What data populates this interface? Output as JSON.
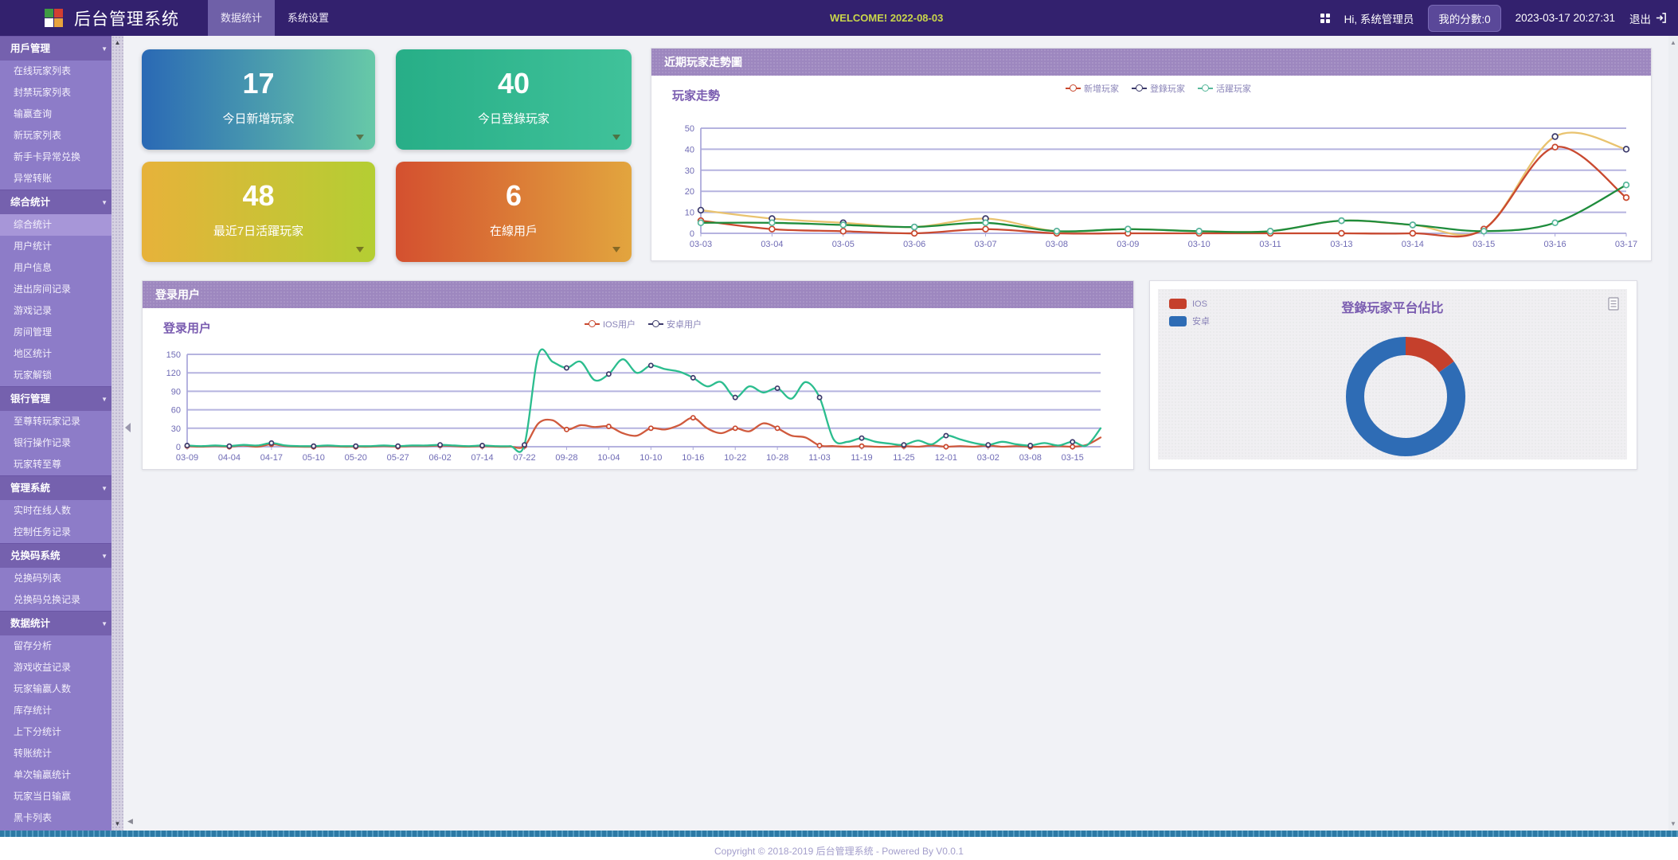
{
  "topbar": {
    "brand": "后台管理系统",
    "tabs": [
      {
        "label": "数据统计",
        "active": true
      },
      {
        "label": "系统设置",
        "active": false
      }
    ],
    "welcome": "WELCOME! 2022-08-03",
    "greeting": "Hi, 系统管理员",
    "score": "我的分數:0",
    "datetime": "2023-03-17 20:27:31",
    "logout": "退出"
  },
  "sidebar": {
    "groups": [
      {
        "label": "用戶管理",
        "items": [
          "在线玩家列表",
          "封禁玩家列表",
          "输赢查询",
          "新玩家列表",
          "新手卡异常兑换",
          "异常转账"
        ],
        "active_item": ""
      },
      {
        "label": "综合统计",
        "items": [
          "综合统计",
          "用户统计",
          "用户信息",
          "进出房间记录",
          "游戏记录",
          "房间管理",
          "地区统计",
          "玩家解锁"
        ],
        "active_item": "综合统计"
      },
      {
        "label": "银行管理",
        "items": [
          "至尊转玩家记录",
          "银行操作记录",
          "玩家转至尊"
        ],
        "active_item": ""
      },
      {
        "label": "管理系統",
        "items": [
          "实时在线人数",
          "控制任务记录"
        ],
        "active_item": ""
      },
      {
        "label": "兑换码系统",
        "items": [
          "兑换码列表",
          "兑换码兑换记录"
        ],
        "active_item": ""
      },
      {
        "label": "数据统计",
        "items": [
          "留存分析",
          "游戏收益记录",
          "玩家输赢人数",
          "库存统计",
          "上下分统计",
          "转账统计",
          "单次输赢统计",
          "玩家当日输赢",
          "黑卡列表"
        ],
        "active_item": ""
      }
    ]
  },
  "cards": [
    {
      "value": "17",
      "label": "今日新增玩家",
      "from": "#2a69b5",
      "to": "#67c9a8"
    },
    {
      "value": "40",
      "label": "今日登錄玩家",
      "from": "#27ae87",
      "to": "#40c29a"
    },
    {
      "value": "48",
      "label": "最近7日活躍玩家",
      "from": "#e7b23a",
      "to": "#b4ce33"
    },
    {
      "value": "6",
      "label": "在線用戶",
      "from": "#d4502f",
      "to": "#e2a53e"
    }
  ],
  "chart_data": [
    {
      "type": "line",
      "panel_title": "近期玩家走勢圖",
      "title": "玩家走勢",
      "categories": [
        "03-03",
        "03-04",
        "03-05",
        "03-06",
        "03-07",
        "03-08",
        "03-09",
        "03-10",
        "03-11",
        "03-13",
        "03-14",
        "03-15",
        "03-16",
        "03-17"
      ],
      "label_every": 1,
      "marker_every": 1,
      "ylim": [
        0,
        50
      ],
      "yticks": [
        0,
        10,
        20,
        30,
        40,
        50
      ],
      "grid": true,
      "legend_position": "top-right",
      "draw_order": [
        1,
        0,
        2
      ],
      "series": [
        {
          "name": "新增玩家",
          "line_color": "#c9492f",
          "marker_color": "#c9492f",
          "values": [
            6,
            2,
            1,
            0,
            2,
            0,
            0,
            0,
            0,
            0,
            0,
            2,
            41,
            17
          ]
        },
        {
          "name": "登錄玩家",
          "line_color": "#e9c36f",
          "marker_color": "#3c3a6b",
          "values": [
            11,
            7,
            5,
            3,
            7,
            1,
            2,
            1,
            1,
            6,
            4,
            2,
            46,
            40
          ]
        },
        {
          "name": "活躍玩家",
          "line_color": "#1e8c3c",
          "marker_color": "#57b89b",
          "values": [
            5,
            5,
            4,
            3,
            5,
            1,
            2,
            1,
            1,
            6,
            4,
            1,
            5,
            23
          ]
        }
      ]
    },
    {
      "type": "line",
      "panel_title": "登录用户",
      "title": "登录用户",
      "categories": [
        "03-09",
        "04-04",
        "04-17",
        "05-10",
        "05-20",
        "05-27",
        "06-02",
        "07-14",
        "07-22",
        "09-28",
        "10-04",
        "10-10",
        "10-16",
        "10-22",
        "10-28",
        "11-03",
        "11-19",
        "11-25",
        "12-01",
        "03-02",
        "03-08",
        "03-15"
      ],
      "label_every": 3,
      "marker_every": 3,
      "ylim": [
        0,
        150
      ],
      "yticks": [
        0,
        30,
        60,
        90,
        120,
        150
      ],
      "grid": true,
      "legend_position": "top-center",
      "draw_order": [
        0,
        1
      ],
      "series": [
        {
          "name": "IOS用户",
          "line_color": "#d05a3d",
          "marker_color": "#c9492f",
          "values": [
            1,
            0,
            1,
            0,
            2,
            0,
            4,
            1,
            0,
            0,
            1,
            0,
            0,
            0,
            1,
            0,
            1,
            1,
            2,
            1,
            0,
            1,
            0,
            0,
            1,
            38,
            43,
            28,
            35,
            32,
            33,
            22,
            18,
            30,
            28,
            35,
            47,
            30,
            22,
            30,
            25,
            38,
            30,
            18,
            15,
            2,
            1,
            0,
            1,
            0,
            0,
            1,
            0,
            2,
            0,
            1,
            0,
            2,
            0,
            1,
            0,
            0,
            1,
            0,
            3,
            15
          ]
        },
        {
          "name": "安卓用户",
          "line_color": "#2bbd8e",
          "marker_color": "#3c3a6b",
          "values": [
            2,
            1,
            2,
            1,
            3,
            2,
            6,
            2,
            1,
            1,
            2,
            1,
            1,
            1,
            2,
            1,
            2,
            2,
            3,
            2,
            1,
            2,
            1,
            1,
            3,
            150,
            138,
            128,
            138,
            108,
            118,
            142,
            120,
            132,
            126,
            122,
            112,
            98,
            105,
            80,
            98,
            88,
            95,
            78,
            105,
            80,
            12,
            8,
            14,
            8,
            5,
            3,
            10,
            4,
            18,
            12,
            6,
            3,
            8,
            4,
            2,
            6,
            2,
            8,
            2,
            30
          ]
        }
      ]
    },
    {
      "type": "pie",
      "title": "登錄玩家平台佔比",
      "labels": [
        "IOS",
        "安卓"
      ],
      "values": [
        15,
        85
      ],
      "colors": [
        "#c5402c",
        "#2e6cb5"
      ]
    }
  ],
  "footer": "Copyright © 2018-2019 后台管理系统 - Powered By V0.0.1"
}
